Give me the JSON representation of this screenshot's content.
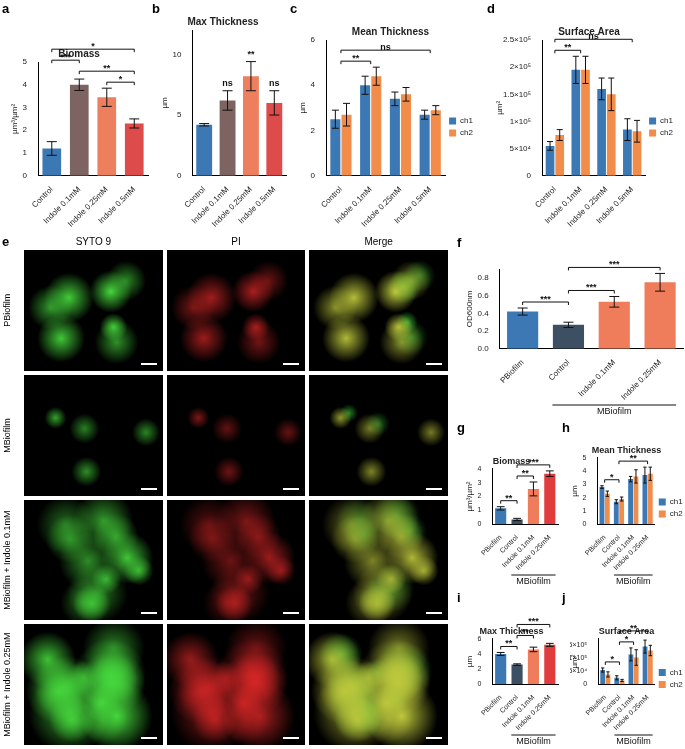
{
  "chart_data": [
    {
      "panel": "a",
      "type": "bar",
      "title": "Biomass",
      "ylabel": "µm³/µm²",
      "categories": [
        "Control",
        "Indole 0.1mM",
        "Indole 0.25mM",
        "Indole 0.5mM"
      ],
      "values": [
        1.2,
        4.0,
        3.45,
        2.3
      ],
      "errors": [
        0.3,
        0.25,
        0.4,
        0.2
      ],
      "colors": [
        "#3c78b4",
        "#7d6462",
        "#ee7f5e",
        "#dd4b4b"
      ],
      "ylim": [
        0,
        5
      ],
      "yticks": [
        0,
        1,
        2,
        3,
        4,
        5
      ],
      "grid": false,
      "brackets": [
        {
          "from": "Indole 0.25mM",
          "to": "Indole 0.5mM",
          "text": "*"
        },
        {
          "from": "Indole 0.1mM",
          "to": "Indole 0.5mM",
          "text": "**"
        },
        {
          "from": "Control",
          "to": "Indole 0.1mM",
          "text": "***"
        },
        {
          "from": "Control",
          "to": "Indole 0.5mM",
          "text": "*"
        }
      ]
    },
    {
      "panel": "b",
      "type": "bar",
      "title": "Max Thickness",
      "ylabel": "µm",
      "categories": [
        "Control",
        "Indole 0.1mM",
        "Indole 0.25mM",
        "Indole 0.5mM"
      ],
      "values": [
        4.2,
        6.2,
        8.2,
        6.0
      ],
      "errors": [
        0.1,
        0.8,
        1.2,
        1.0
      ],
      "colors": [
        "#3c78b4",
        "#7d6462",
        "#ee7f5e",
        "#dd4b4b"
      ],
      "ylim": [
        0,
        12
      ],
      "yticks": [
        0,
        5,
        10
      ],
      "grid": false,
      "annotations": [
        {
          "category": "Indole 0.1mM",
          "text": "ns"
        },
        {
          "category": "Indole 0.25mM",
          "text": "**"
        },
        {
          "category": "Indole 0.5mM",
          "text": "ns"
        }
      ]
    },
    {
      "panel": "c",
      "type": "bar",
      "title": "Mean Thickness",
      "ylabel": "µm",
      "categories": [
        "Control",
        "Indole 0.1mM",
        "Indole 0.25mM",
        "Indole 0.5mM"
      ],
      "series": [
        {
          "name": "ch1",
          "color": "#3c78b4",
          "values": [
            2.5,
            4.0,
            3.4,
            2.7
          ],
          "errors": [
            0.4,
            0.4,
            0.3,
            0.2
          ]
        },
        {
          "name": "ch2",
          "color": "#f28c4a",
          "values": [
            2.7,
            4.4,
            3.6,
            2.9
          ],
          "errors": [
            0.5,
            0.4,
            0.3,
            0.2
          ]
        }
      ],
      "ylim": [
        0,
        6
      ],
      "yticks": [
        0,
        2,
        4,
        6
      ],
      "grid": false,
      "legend": "right",
      "brackets": [
        {
          "from": "Control",
          "to": "Indole 0.1mM",
          "text": "**"
        },
        {
          "from": "Control",
          "to": "Indole 0.5mM",
          "text": "ns"
        }
      ]
    },
    {
      "panel": "d",
      "type": "bar",
      "title": "Surface Area",
      "ylabel": "µm²",
      "categories": [
        "Control",
        "Indole 0.1mM",
        "Indole 0.25mM",
        "Indole 0.5mM"
      ],
      "series": [
        {
          "name": "ch1",
          "color": "#3c78b4",
          "values": [
            55000,
            195000,
            160000,
            85000
          ],
          "errors": [
            8000,
            25000,
            20000,
            20000
          ]
        },
        {
          "name": "ch2",
          "color": "#f28c4a",
          "values": [
            75000,
            195000,
            150000,
            82000
          ],
          "errors": [
            10000,
            25000,
            30000,
            20000
          ]
        }
      ],
      "ylim": [
        0,
        250000
      ],
      "yticks": [
        0,
        {
          "value": 50000,
          "label": "5×10⁴"
        },
        {
          "value": 100000,
          "label": "1×10⁵"
        },
        {
          "value": 150000,
          "label": "1.5×10⁵"
        },
        {
          "value": 200000,
          "label": "2×10⁵"
        },
        {
          "value": 250000,
          "label": "2.5×10⁵"
        }
      ],
      "grid": false,
      "legend": "right",
      "brackets": [
        {
          "from": "Control",
          "to": "Indole 0.1mM",
          "text": "**"
        },
        {
          "from": "Control",
          "to": "Indole 0.5mM",
          "text": "ns"
        }
      ]
    },
    {
      "panel": "f",
      "type": "bar",
      "ylabel": "OD600nm",
      "categories": [
        "PBiofilm",
        "Control",
        "Indole 0.1mM",
        "Indole 0.25mM"
      ],
      "values": [
        0.42,
        0.27,
        0.53,
        0.75
      ],
      "errors": [
        0.04,
        0.03,
        0.06,
        0.1
      ],
      "colors": [
        "#3c78b4",
        "#3d4f63",
        "#ef7c5b",
        "#ef7c5b"
      ],
      "ylim": [
        0,
        0.9
      ],
      "yticks": [
        {
          "value": 0,
          "label": "0.0"
        },
        0.2,
        0.4,
        0.6,
        0.8
      ],
      "grid": false,
      "group_label": {
        "text": "MBiofilm",
        "categories": [
          "Control",
          "Indole 0.1mM",
          "Indole 0.25mM"
        ]
      },
      "brackets": [
        {
          "from": "PBiofilm",
          "to": "Control",
          "text": "***"
        },
        {
          "from": "Control",
          "to": "Indole 0.1mM",
          "text": "***"
        },
        {
          "from": "Control",
          "to": "Indole 0.25mM",
          "text": "***"
        }
      ]
    },
    {
      "panel": "g",
      "type": "bar",
      "title": "Biomass",
      "ylabel": "µm³/µm²",
      "categories": [
        "PBiofilm",
        "Control",
        "Indole 0.1mM",
        "Indole 0.25mM"
      ],
      "values": [
        1.15,
        0.35,
        2.55,
        3.65
      ],
      "errors": [
        0.12,
        0.08,
        0.5,
        0.2
      ],
      "colors": [
        "#3c78b4",
        "#3d4f63",
        "#ef7c5b",
        "#e03c3c"
      ],
      "ylim": [
        0,
        4
      ],
      "yticks": [
        0,
        1,
        2,
        3,
        4
      ],
      "grid": false,
      "group_label": {
        "text": "MBiofilm",
        "categories": [
          "Control",
          "Indole 0.1mM",
          "Indole 0.25mM"
        ]
      },
      "brackets": [
        {
          "from": "PBiofilm",
          "to": "Control",
          "text": "**"
        },
        {
          "from": "Control",
          "to": "Indole 0.1mM",
          "text": "**"
        },
        {
          "from": "Control",
          "to": "Indole 0.25mM",
          "text": "***"
        }
      ]
    },
    {
      "panel": "h",
      "type": "bar",
      "title": "Mean Thickness",
      "ylabel": "µm",
      "categories": [
        "PBiofilm",
        "Control",
        "Indole 0.1mM",
        "Indole 0.25mM"
      ],
      "series": [
        {
          "name": "ch1",
          "color": "#3c78b4",
          "values": [
            2.8,
            1.7,
            3.4,
            3.7
          ],
          "errors": [
            0.1,
            0.15,
            0.2,
            0.6
          ]
        },
        {
          "name": "ch2",
          "color": "#f28c4a",
          "values": [
            2.3,
            1.9,
            3.6,
            3.8
          ],
          "errors": [
            0.2,
            0.15,
            0.5,
            0.5
          ]
        }
      ],
      "ylim": [
        0,
        5
      ],
      "yticks": [
        0,
        1,
        2,
        3,
        4,
        5
      ],
      "grid": false,
      "legend": "right",
      "group_label": {
        "text": "MBiofilm",
        "categories": [
          "Control",
          "Indole 0.1mM",
          "Indole 0.25mM"
        ]
      },
      "brackets": [
        {
          "from": "PBiofilm",
          "to": "Control",
          "text": "*"
        },
        {
          "from": "Control",
          "to": "Indole 0.25mM",
          "text": "**"
        }
      ]
    },
    {
      "panel": "i",
      "type": "bar",
      "title": "Max Thickness",
      "ylabel": "µm",
      "categories": [
        "PBiofilm",
        "Control",
        "Indole 0.1mM",
        "Indole 0.25mM"
      ],
      "values": [
        4.0,
        2.6,
        4.6,
        5.2
      ],
      "errors": [
        0.2,
        0.1,
        0.3,
        0.2
      ],
      "colors": [
        "#3c78b4",
        "#3d4f63",
        "#ef7c5b",
        "#e03c3c"
      ],
      "ylim": [
        0,
        6
      ],
      "yticks": [
        0,
        2,
        4,
        6
      ],
      "grid": false,
      "group_label": {
        "text": "MBiofilm",
        "categories": [
          "Control",
          "Indole 0.1mM",
          "Indole 0.25mM"
        ]
      },
      "brackets": [
        {
          "from": "PBiofilm",
          "to": "Control",
          "text": "**"
        },
        {
          "from": "Control",
          "to": "Indole 0.1mM",
          "text": "**"
        },
        {
          "from": "Control",
          "to": "Indole 0.25mM",
          "text": "***"
        }
      ]
    },
    {
      "panel": "j",
      "type": "bar",
      "title": "Surface Area",
      "ylabel": "µm²",
      "categories": [
        "PBiofilm",
        "Control",
        "Indole 0.1mM",
        "Indole 0.25mM"
      ],
      "series": [
        {
          "name": "ch1",
          "color": "#3c78b4",
          "values": [
            55000,
            25000,
            115000,
            145000
          ],
          "errors": [
            8000,
            8000,
            25000,
            25000
          ]
        },
        {
          "name": "ch2",
          "color": "#f28c4a",
          "values": [
            38000,
            15000,
            103000,
            130000
          ],
          "errors": [
            10000,
            4000,
            30000,
            20000
          ]
        }
      ],
      "ylim": [
        0,
        175000
      ],
      "yticks": [
        0,
        {
          "value": 50000,
          "label": "5×10⁴"
        },
        {
          "value": 100000,
          "label": "1×10⁵"
        },
        {
          "value": 150000,
          "label": "1.5×10⁵"
        }
      ],
      "grid": false,
      "legend": "right",
      "group_label": {
        "text": "MBiofilm",
        "categories": [
          "Control",
          "Indole 0.1mM",
          "Indole 0.25mM"
        ]
      },
      "brackets": [
        {
          "from": "PBiofilm",
          "to": "Control",
          "text": "*"
        },
        {
          "from": "Control",
          "to": "Indole 0.1mM",
          "text": "*"
        },
        {
          "from": "Control",
          "to": "Indole 0.25mM",
          "text": "**"
        }
      ]
    }
  ],
  "image_panel": {
    "panel": "e",
    "columns": [
      "SYTO 9",
      "PI",
      "Merge"
    ],
    "rows": [
      "PBiofilm",
      "MBiofilm",
      "MBiofilm + Indole 0.1mM",
      "MBiofilm + Indole 0.25mM"
    ]
  }
}
